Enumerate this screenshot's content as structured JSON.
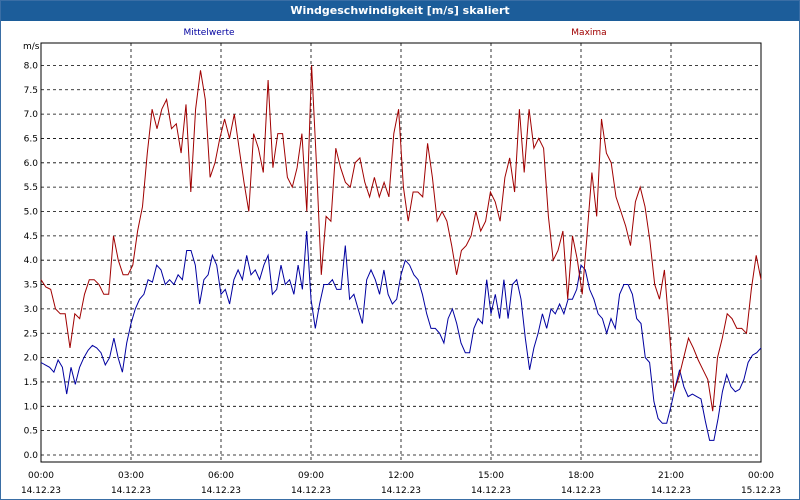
{
  "window": {
    "title": "Windgeschwindigkeit [m/s] skaliert"
  },
  "chart_data": {
    "type": "line",
    "title": "Windgeschwindigkeit [m/s] skaliert",
    "ylabel": "m/s",
    "xlabel": "",
    "ylim": [
      0,
      8.5
    ],
    "y_ticks": [
      "0.0",
      "0.5",
      "1.0",
      "1.5",
      "2.0",
      "2.5",
      "3.0",
      "3.5",
      "4.0",
      "4.5",
      "5.0",
      "5.5",
      "6.0",
      "6.5",
      "7.0",
      "7.5",
      "8.0"
    ],
    "x_range_hours": [
      0,
      24
    ],
    "x_ticks": [
      {
        "time": "00:00",
        "date": "14.12.23"
      },
      {
        "time": "03:00",
        "date": "14.12.23"
      },
      {
        "time": "06:00",
        "date": "14.12.23"
      },
      {
        "time": "09:00",
        "date": "14.12.23"
      },
      {
        "time": "12:00",
        "date": "14.12.23"
      },
      {
        "time": "15:00",
        "date": "14.12.23"
      },
      {
        "time": "18:00",
        "date": "14.12.23"
      },
      {
        "time": "21:00",
        "date": "14.12.23"
      },
      {
        "time": "00:00",
        "date": "15.12.23"
      }
    ],
    "grid": true,
    "legend_placement": "top",
    "series": [
      {
        "name": "Mittelwerte",
        "color": "#0000a0",
        "values": [
          1.9,
          1.85,
          1.8,
          1.7,
          1.95,
          1.8,
          1.25,
          1.8,
          1.45,
          1.8,
          2.0,
          2.15,
          2.25,
          2.2,
          2.1,
          1.85,
          2.0,
          2.4,
          2.0,
          1.7,
          2.3,
          2.7,
          3.0,
          3.2,
          3.3,
          3.6,
          3.55,
          3.9,
          3.8,
          3.5,
          3.6,
          3.5,
          3.7,
          3.6,
          4.2,
          4.2,
          3.9,
          3.1,
          3.6,
          3.7,
          4.1,
          3.9,
          3.3,
          3.4,
          3.1,
          3.6,
          3.8,
          3.6,
          4.1,
          3.7,
          3.8,
          3.6,
          3.9,
          4.1,
          3.3,
          3.4,
          3.9,
          3.5,
          3.6,
          3.3,
          3.9,
          3.4,
          4.6,
          3.2,
          2.6,
          3.1,
          3.5,
          3.5,
          3.6,
          3.4,
          3.4,
          4.3,
          3.2,
          3.3,
          3.0,
          2.7,
          3.6,
          3.8,
          3.6,
          3.3,
          3.8,
          3.3,
          3.1,
          3.2,
          3.7,
          4.0,
          3.9,
          3.7,
          3.6,
          3.3,
          2.9,
          2.6,
          2.6,
          2.5,
          2.3,
          2.8,
          3.0,
          2.7,
          2.3,
          2.1,
          2.1,
          2.6,
          2.8,
          2.7,
          3.6,
          2.9,
          3.3,
          2.8,
          3.6,
          2.8,
          3.5,
          3.6,
          3.2,
          2.4,
          1.75,
          2.2,
          2.5,
          2.9,
          2.6,
          3.0,
          2.9,
          3.1,
          2.9,
          3.2,
          3.2,
          3.4,
          3.9,
          3.8,
          3.4,
          3.2,
          2.9,
          2.8,
          2.5,
          2.8,
          2.6,
          3.3,
          3.5,
          3.5,
          3.3,
          2.8,
          2.7,
          2.0,
          1.9,
          1.1,
          0.75,
          0.65,
          0.65,
          1.0,
          1.4,
          1.75,
          1.4,
          1.2,
          1.25,
          1.2,
          1.15,
          0.7,
          0.3,
          0.3,
          0.75,
          1.3,
          1.65,
          1.4,
          1.3,
          1.35,
          1.55,
          1.9,
          2.05,
          2.1,
          2.2
        ]
      },
      {
        "name": "Maxima",
        "color": "#a00000",
        "values": [
          3.6,
          3.45,
          3.4,
          3.0,
          2.9,
          2.9,
          2.2,
          2.9,
          2.8,
          3.3,
          3.6,
          3.6,
          3.5,
          3.3,
          3.3,
          4.5,
          4.0,
          3.7,
          3.7,
          3.9,
          4.6,
          5.1,
          6.2,
          7.1,
          6.7,
          7.1,
          7.3,
          6.7,
          6.8,
          6.2,
          7.2,
          5.4,
          7.1,
          7.9,
          7.3,
          5.7,
          6.0,
          6.5,
          6.9,
          6.5,
          7.0,
          6.3,
          5.6,
          5.0,
          6.6,
          6.3,
          5.8,
          7.7,
          5.9,
          6.6,
          6.6,
          5.7,
          5.5,
          5.9,
          6.6,
          5.0,
          8.0,
          6.0,
          3.7,
          4.9,
          4.8,
          6.3,
          5.9,
          5.6,
          5.5,
          6.0,
          6.1,
          5.6,
          5.3,
          5.7,
          5.3,
          5.6,
          5.3,
          6.6,
          7.1,
          5.5,
          4.8,
          5.4,
          5.4,
          5.3,
          6.4,
          5.7,
          4.8,
          5.0,
          4.8,
          4.3,
          3.7,
          4.2,
          4.3,
          4.5,
          5.0,
          4.6,
          4.8,
          5.4,
          5.2,
          4.8,
          5.7,
          6.1,
          5.4,
          7.1,
          5.8,
          7.1,
          6.3,
          6.5,
          6.3,
          4.9,
          4.0,
          4.2,
          4.6,
          3.2,
          4.5,
          4.0,
          3.3,
          4.5,
          5.8,
          4.9,
          6.9,
          6.2,
          6.0,
          5.3,
          5.0,
          4.7,
          4.3,
          5.2,
          5.5,
          5.1,
          4.4,
          3.5,
          3.2,
          3.8,
          2.6,
          1.3,
          1.6,
          2.0,
          2.4,
          2.2,
          1.95,
          1.75,
          1.55,
          0.9,
          2.0,
          2.4,
          2.9,
          2.8,
          2.6,
          2.6,
          2.5,
          3.4,
          4.1,
          3.6
        ]
      }
    ]
  }
}
